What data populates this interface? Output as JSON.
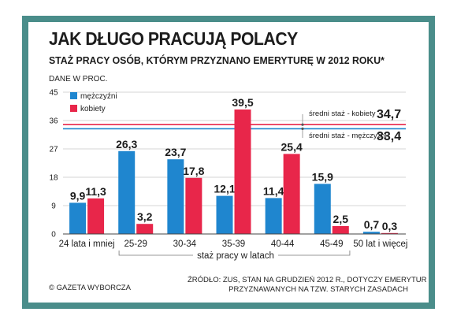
{
  "header": {
    "title": "JAK DŁUGO PRACUJĄ POLACY",
    "subtitle": "STAŻ PRACY OSÓB, KTÓRYM PRZYZNANO EMERYTURĘ W 2012 ROKU*",
    "units": "DANE W PROC."
  },
  "footer": {
    "copyright": "© GAZETA WYBORCZA",
    "source_line1": "ŹRÓDŁO: ZUS, STAN NA GRUDZIEŃ 2012 R., DOTYCZY EMERYTUR",
    "source_line2": "PRZYZNAWANYCH NA TZW. STARYCH ZASADACH"
  },
  "colors": {
    "frame": "#4a8d8a",
    "men": "#1f86cf",
    "women": "#e8264a",
    "avg_men": "#1f86cf",
    "avg_women": "#e8264a"
  },
  "chart_data": {
    "type": "bar",
    "xlabel": "staż pracy w latach",
    "ylabel": "",
    "ylim": [
      0,
      45
    ],
    "yticks": [
      0,
      9,
      18,
      27,
      36,
      45
    ],
    "grid": true,
    "legend": "top-left",
    "categories": [
      "24 lata i mniej",
      "25-29",
      "30-34",
      "35-39",
      "40-44",
      "45-49",
      "50 lat i więcej"
    ],
    "series": [
      {
        "name": "mężczyźni",
        "values": [
          9.9,
          26.3,
          23.7,
          12.1,
          11.4,
          15.9,
          0.7
        ],
        "labels": [
          "9,9",
          "26,3",
          "23,7",
          "12,1",
          "11,4",
          "15,9",
          "0,7"
        ]
      },
      {
        "name": "kobiety",
        "values": [
          11.3,
          3.2,
          17.8,
          39.5,
          25.4,
          2.5,
          0.3
        ],
        "labels": [
          "11,3",
          "3,2",
          "17,8",
          "39,5",
          "25,4",
          "2,5",
          "0,3"
        ]
      }
    ],
    "reference_lines": [
      {
        "label": "średni staż - kobiety",
        "value": 34.7,
        "value_label": "34,7"
      },
      {
        "label": "średni staż - mężczyźni",
        "value": 33.4,
        "value_label": "33,4"
      }
    ]
  }
}
